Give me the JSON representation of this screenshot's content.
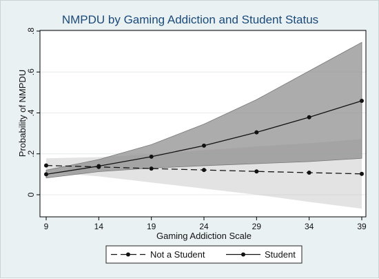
{
  "chart_data": {
    "type": "line",
    "title": "NMPDU by Gaming Addiction and Student Status",
    "xlabel": "Gaming Addiction Scale",
    "ylabel": "Probability of NMPDU",
    "xlim": [
      9,
      39
    ],
    "ylim": [
      -0.07,
      0.8
    ],
    "xticks": [
      9,
      14,
      19,
      24,
      29,
      34,
      39
    ],
    "yticks": [
      0,
      0.2,
      0.4,
      0.6,
      0.8
    ],
    "ytick_labels": [
      "0",
      ".2",
      ".4",
      ".6",
      ".8"
    ],
    "grid": "horizontal",
    "legend_position": "bottom",
    "colors": {
      "plot_bg": "#ffffff",
      "figure_bg": "#eaf1f3",
      "line": "#111111",
      "ci_not_student": "#bdbdbd",
      "ci_student": "#8c8c8c"
    },
    "series": [
      {
        "name": "Not a Student",
        "style": "dashed",
        "x": [
          9,
          14,
          19,
          24,
          29,
          34,
          39
        ],
        "y": [
          0.143,
          0.136,
          0.128,
          0.121,
          0.114,
          0.108,
          0.102
        ],
        "ci_lower": [
          0.11,
          0.09,
          0.06,
          0.03,
          0.0,
          -0.035,
          -0.068
        ],
        "ci_upper": [
          0.178,
          0.184,
          0.198,
          0.218,
          0.236,
          0.252,
          0.272
        ]
      },
      {
        "name": "Student",
        "style": "solid",
        "x": [
          9,
          14,
          19,
          24,
          29,
          34,
          39
        ],
        "y": [
          0.1,
          0.14,
          0.186,
          0.24,
          0.305,
          0.379,
          0.459
        ],
        "ci_lower": [
          0.082,
          0.113,
          0.13,
          0.142,
          0.152,
          0.162,
          0.178
        ],
        "ci_upper": [
          0.12,
          0.172,
          0.245,
          0.345,
          0.465,
          0.605,
          0.745
        ]
      }
    ]
  }
}
